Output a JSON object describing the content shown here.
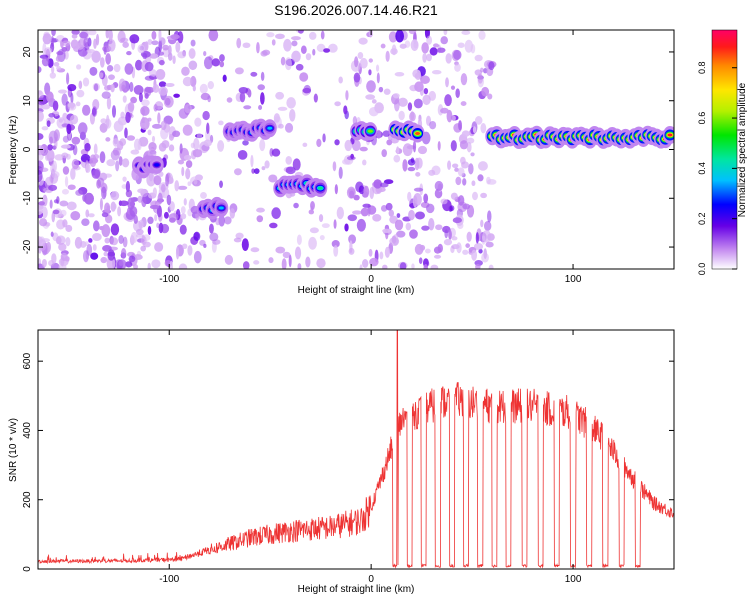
{
  "page_title": "S196.2026.007.14.46.R21",
  "chart_data": [
    {
      "type": "heatmap",
      "title": "S196.2026.007.14.46.R21",
      "xlabel": "Height of straight line (km)",
      "ylabel": "Frequency (Hz)",
      "xlim": [
        -165,
        150
      ],
      "ylim": [
        -24.5,
        24.5
      ],
      "x_ticks": [
        -100,
        0,
        100
      ],
      "y_ticks": [
        -20,
        -10,
        0,
        10,
        20
      ],
      "colorbar": {
        "label": "Normalized spectral amplitude",
        "range": [
          0,
          0.95
        ],
        "ticks": [
          0.0,
          0.2,
          0.4,
          0.6,
          0.8
        ]
      },
      "features": [
        {
          "x_start": -115,
          "x_end": -105,
          "freq": -3.5,
          "amp": 0.25
        },
        {
          "x_start": -83,
          "x_end": -73,
          "freq": -12,
          "amp": 0.35
        },
        {
          "x_start": -70,
          "x_end": -50,
          "freq": 4,
          "amp": 0.35
        },
        {
          "x_start": -45,
          "x_end": -25,
          "freq": -7.5,
          "amp": 0.45
        },
        {
          "x_start": -7,
          "x_end": 0,
          "freq": 3.5,
          "amp": 0.6
        },
        {
          "x_start": 12,
          "x_end": 25,
          "freq": 3.5,
          "amp": 0.85
        },
        {
          "x_start": 60,
          "x_end": 148,
          "freq": 2.5,
          "amp": 0.9
        }
      ]
    },
    {
      "type": "line",
      "xlabel": "Height of straight line (km)",
      "ylabel": "SNR (10 * v/v)",
      "xlim": [
        -165,
        150
      ],
      "ylim": [
        0,
        690
      ],
      "x_ticks": [
        -100,
        0,
        100
      ],
      "y_ticks": [
        0,
        200,
        400,
        600
      ],
      "line_color": "#ee3333",
      "envelope": {
        "x": [
          -165,
          -120,
          -95,
          -80,
          -60,
          -40,
          -20,
          -5,
          0,
          5,
          10,
          15,
          25,
          40,
          60,
          80,
          100,
          115,
          130,
          140,
          150
        ],
        "y": [
          22,
          24,
          28,
          55,
          90,
          110,
          120,
          140,
          180,
          260,
          350,
          430,
          460,
          490,
          470,
          470,
          450,
          380,
          260,
          190,
          160
        ]
      },
      "dropouts_km": [
        12,
        19,
        26,
        33,
        40,
        47,
        54,
        61,
        68,
        76,
        84,
        92,
        100,
        108,
        116,
        124,
        132
      ],
      "spike": {
        "x": 13,
        "y": 690
      }
    }
  ]
}
